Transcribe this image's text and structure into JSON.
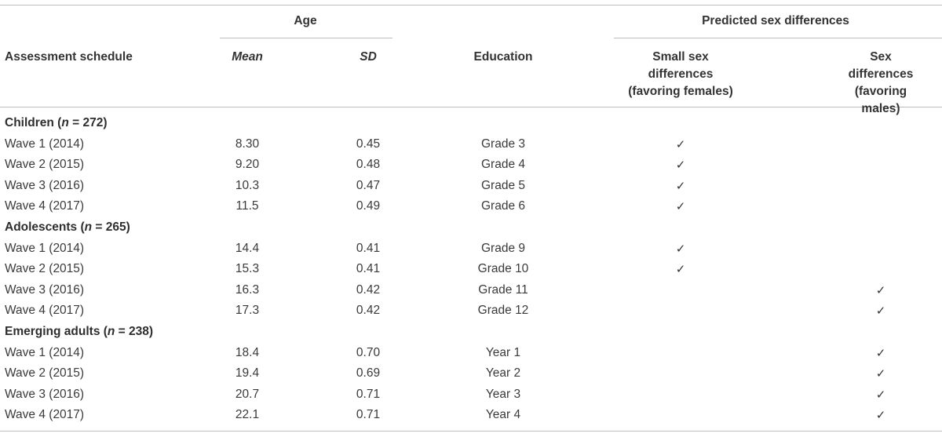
{
  "header": {
    "age_group": "Age",
    "predicted_group": "Predicted sex differences",
    "col_schedule": "Assessment schedule",
    "col_mean": "Mean",
    "col_sd": "SD",
    "col_education": "Education",
    "col_small_line1": "Small sex",
    "col_small_line2": "differences",
    "col_small_line3": "(favoring females)",
    "col_males_line1": "Sex differences",
    "col_males_line2": "(favoring males)"
  },
  "check_glyph": "✓",
  "groups": [
    {
      "label": "Children",
      "n_prefix": " (",
      "n_var": "n",
      "n_value": " = 272)",
      "rows": [
        {
          "wave": "Wave 1 (2014)",
          "mean": "8.30",
          "sd": "0.45",
          "education": "Grade 3",
          "small": true,
          "males": false
        },
        {
          "wave": "Wave 2 (2015)",
          "mean": "9.20",
          "sd": "0.48",
          "education": "Grade 4",
          "small": true,
          "males": false
        },
        {
          "wave": "Wave 3 (2016)",
          "mean": "10.3",
          "sd": "0.47",
          "education": "Grade 5",
          "small": true,
          "males": false
        },
        {
          "wave": "Wave 4 (2017)",
          "mean": "11.5",
          "sd": "0.49",
          "education": "Grade 6",
          "small": true,
          "males": false
        }
      ]
    },
    {
      "label": "Adolescents",
      "n_prefix": " (",
      "n_var": "n",
      "n_value": " = 265)",
      "rows": [
        {
          "wave": "Wave 1 (2014)",
          "mean": "14.4",
          "sd": "0.41",
          "education": "Grade 9",
          "small": true,
          "males": false
        },
        {
          "wave": "Wave 2 (2015)",
          "mean": "15.3",
          "sd": "0.41",
          "education": "Grade 10",
          "small": true,
          "males": false
        },
        {
          "wave": "Wave 3 (2016)",
          "mean": "16.3",
          "sd": "0.42",
          "education": "Grade 11",
          "small": false,
          "males": true
        },
        {
          "wave": "Wave 4 (2017)",
          "mean": "17.3",
          "sd": "0.42",
          "education": "Grade 12",
          "small": false,
          "males": true
        }
      ]
    },
    {
      "label": "Emerging adults",
      "n_prefix": " (",
      "n_var": "n",
      "n_value": " = 238)",
      "rows": [
        {
          "wave": "Wave 1 (2014)",
          "mean": "18.4",
          "sd": "0.70",
          "education": "Year 1",
          "small": false,
          "males": true
        },
        {
          "wave": "Wave 2 (2015)",
          "mean": "19.4",
          "sd": "0.69",
          "education": "Year 2",
          "small": false,
          "males": true
        },
        {
          "wave": "Wave 3 (2016)",
          "mean": "20.7",
          "sd": "0.71",
          "education": "Year 3",
          "small": false,
          "males": true
        },
        {
          "wave": "Wave 4 (2017)",
          "mean": "22.1",
          "sd": "0.71",
          "education": "Year 4",
          "small": false,
          "males": true
        }
      ]
    }
  ]
}
